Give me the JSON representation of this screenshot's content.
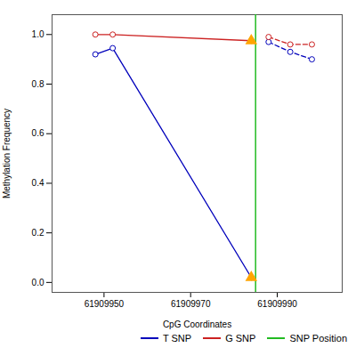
{
  "chart_data": {
    "type": "line",
    "xlabel": "CpG Coordinates",
    "ylabel": "Methylation Frequency",
    "series": [
      {
        "name": "T SNP",
        "color": "#0000bb",
        "line_style": "solid",
        "marker": "circle",
        "x": [
          61909948,
          61909952,
          61909984
        ],
        "values": [
          0.92,
          0.945,
          0.02
        ]
      },
      {
        "name": "T SNP",
        "color": "#0000bb",
        "line_style": "dashed",
        "marker": "circle",
        "x": [
          61909988,
          61909993,
          61909998
        ],
        "values": [
          0.97,
          0.93,
          0.9
        ]
      },
      {
        "name": "G SNP",
        "color": "#cc2222",
        "line_style": "solid",
        "marker": "circle",
        "x": [
          61909948,
          61909952,
          61909984
        ],
        "values": [
          1.0,
          1.0,
          0.975
        ]
      },
      {
        "name": "G SNP",
        "color": "#cc2222",
        "line_style": "dashed",
        "marker": "circle",
        "x": [
          61909988,
          61909993,
          61909998
        ],
        "values": [
          0.99,
          0.96,
          0.96
        ]
      }
    ],
    "vlines": [
      {
        "name": "SNP Position",
        "x": 61909985,
        "color": "#22bb22"
      }
    ],
    "points": {
      "color": "#FFA500",
      "marker": "triangle",
      "x": [
        61909984,
        61909984
      ],
      "values": [
        0.02,
        0.975
      ]
    },
    "xlim": [
      61909938,
      61910005
    ],
    "ylim": [
      -0.04,
      1.08
    ],
    "xticks": [
      61909950,
      61909970,
      61909990
    ],
    "yticks": [
      {
        "value": 0.0,
        "label": "0.0"
      },
      0.2,
      0.4,
      0.6,
      0.8,
      {
        "value": 1.0,
        "label": "1.0"
      }
    ],
    "grid": false,
    "legend": "lower right"
  }
}
